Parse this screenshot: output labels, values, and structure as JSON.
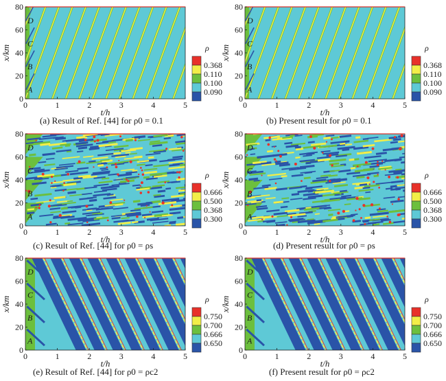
{
  "colors": {
    "red": "#e8312a",
    "yellow": "#f2ee48",
    "green": "#6cbf3d",
    "cyan": "#5ec9d6",
    "blue": "#2a54a8",
    "frame_top": "#d9302a"
  },
  "chart_data": [
    {
      "id": "a",
      "type": "heatmap",
      "caption": "(a) Result of Ref. [44] for ρ0 = 0.1",
      "xlabel": "t/h",
      "ylabel": "x/km",
      "xlim": [
        0,
        5
      ],
      "ylim": [
        0,
        80
      ],
      "xticks": [
        "0",
        "1",
        "2",
        "3",
        "4",
        "5"
      ],
      "yticks": [
        "0",
        "20",
        "40",
        "60",
        "80"
      ],
      "legend_title": "ρ",
      "legend_levels": [
        "0.368",
        "0.110",
        "0.100",
        "0.090"
      ],
      "region_labels": [
        "A",
        "B",
        "C",
        "D"
      ],
      "pattern": "sparse"
    },
    {
      "id": "b",
      "type": "heatmap",
      "caption": "(b) Present result for ρ0 = 0.1",
      "xlabel": "t/h",
      "ylabel": "x/km",
      "xlim": [
        0,
        5
      ],
      "ylim": [
        0,
        80
      ],
      "xticks": [
        "0",
        "1",
        "2",
        "3",
        "4",
        "5"
      ],
      "yticks": [
        "0",
        "20",
        "40",
        "60",
        "80"
      ],
      "legend_title": "ρ",
      "legend_levels": [
        "0.368",
        "0.110",
        "0.100",
        "0.090"
      ],
      "region_labels": [
        "A",
        "B",
        "C",
        "D"
      ],
      "pattern": "sparse"
    },
    {
      "id": "c",
      "type": "heatmap",
      "caption": "(c) Result of Ref. [44] for ρ0 = ρs",
      "xlabel": "t/h",
      "ylabel": "x/km",
      "xlim": [
        0,
        5
      ],
      "ylim": [
        0,
        80
      ],
      "xticks": [
        "0",
        "1",
        "2",
        "3",
        "4",
        "5"
      ],
      "yticks": [
        "0",
        "20",
        "40",
        "60",
        "80"
      ],
      "legend_title": "ρ",
      "legend_levels": [
        "0.666",
        "0.500",
        "0.368",
        "0.300"
      ],
      "region_labels": [
        "A",
        "B",
        "C",
        "D"
      ],
      "pattern": "dense"
    },
    {
      "id": "d",
      "type": "heatmap",
      "caption": "(d) Present result for ρ0 = ρs",
      "xlabel": "t/h",
      "ylabel": "x/km",
      "xlim": [
        0,
        5
      ],
      "ylim": [
        0,
        80
      ],
      "xticks": [
        "0",
        "1",
        "2",
        "3",
        "4",
        "5"
      ],
      "yticks": [
        "0",
        "20",
        "40",
        "60",
        "80"
      ],
      "legend_title": "ρ",
      "legend_levels": [
        "0.666",
        "0.500",
        "0.368",
        "0.300"
      ],
      "region_labels": [
        "A",
        "B",
        "C",
        "D"
      ],
      "pattern": "dense"
    },
    {
      "id": "e",
      "type": "heatmap",
      "caption": "(e) Result of Ref. [44] for ρ0 = ρc2",
      "xlabel": "t/h",
      "ylabel": "x/km",
      "xlim": [
        0,
        5
      ],
      "ylim": [
        0,
        80
      ],
      "xticks": [
        "0",
        "1",
        "2",
        "3",
        "4",
        "5"
      ],
      "yticks": [
        "0",
        "20",
        "40",
        "60",
        "80"
      ],
      "legend_title": "ρ",
      "legend_levels": [
        "0.750",
        "0.700",
        "0.666",
        "0.650"
      ],
      "region_labels": [
        "A",
        "B",
        "C",
        "D"
      ],
      "pattern": "backward"
    },
    {
      "id": "f",
      "type": "heatmap",
      "caption": "(f) Present result for ρ0 = ρc2",
      "xlabel": "t/h",
      "ylabel": "x/km",
      "xlim": [
        0,
        5
      ],
      "ylim": [
        0,
        80
      ],
      "xticks": [
        "0",
        "1",
        "2",
        "3",
        "4",
        "5"
      ],
      "yticks": [
        "0",
        "20",
        "40",
        "60",
        "80"
      ],
      "legend_title": "ρ",
      "legend_levels": [
        "0.750",
        "0.700",
        "0.666",
        "0.650"
      ],
      "region_labels": [
        "A",
        "B",
        "C",
        "D"
      ],
      "pattern": "backward"
    }
  ]
}
